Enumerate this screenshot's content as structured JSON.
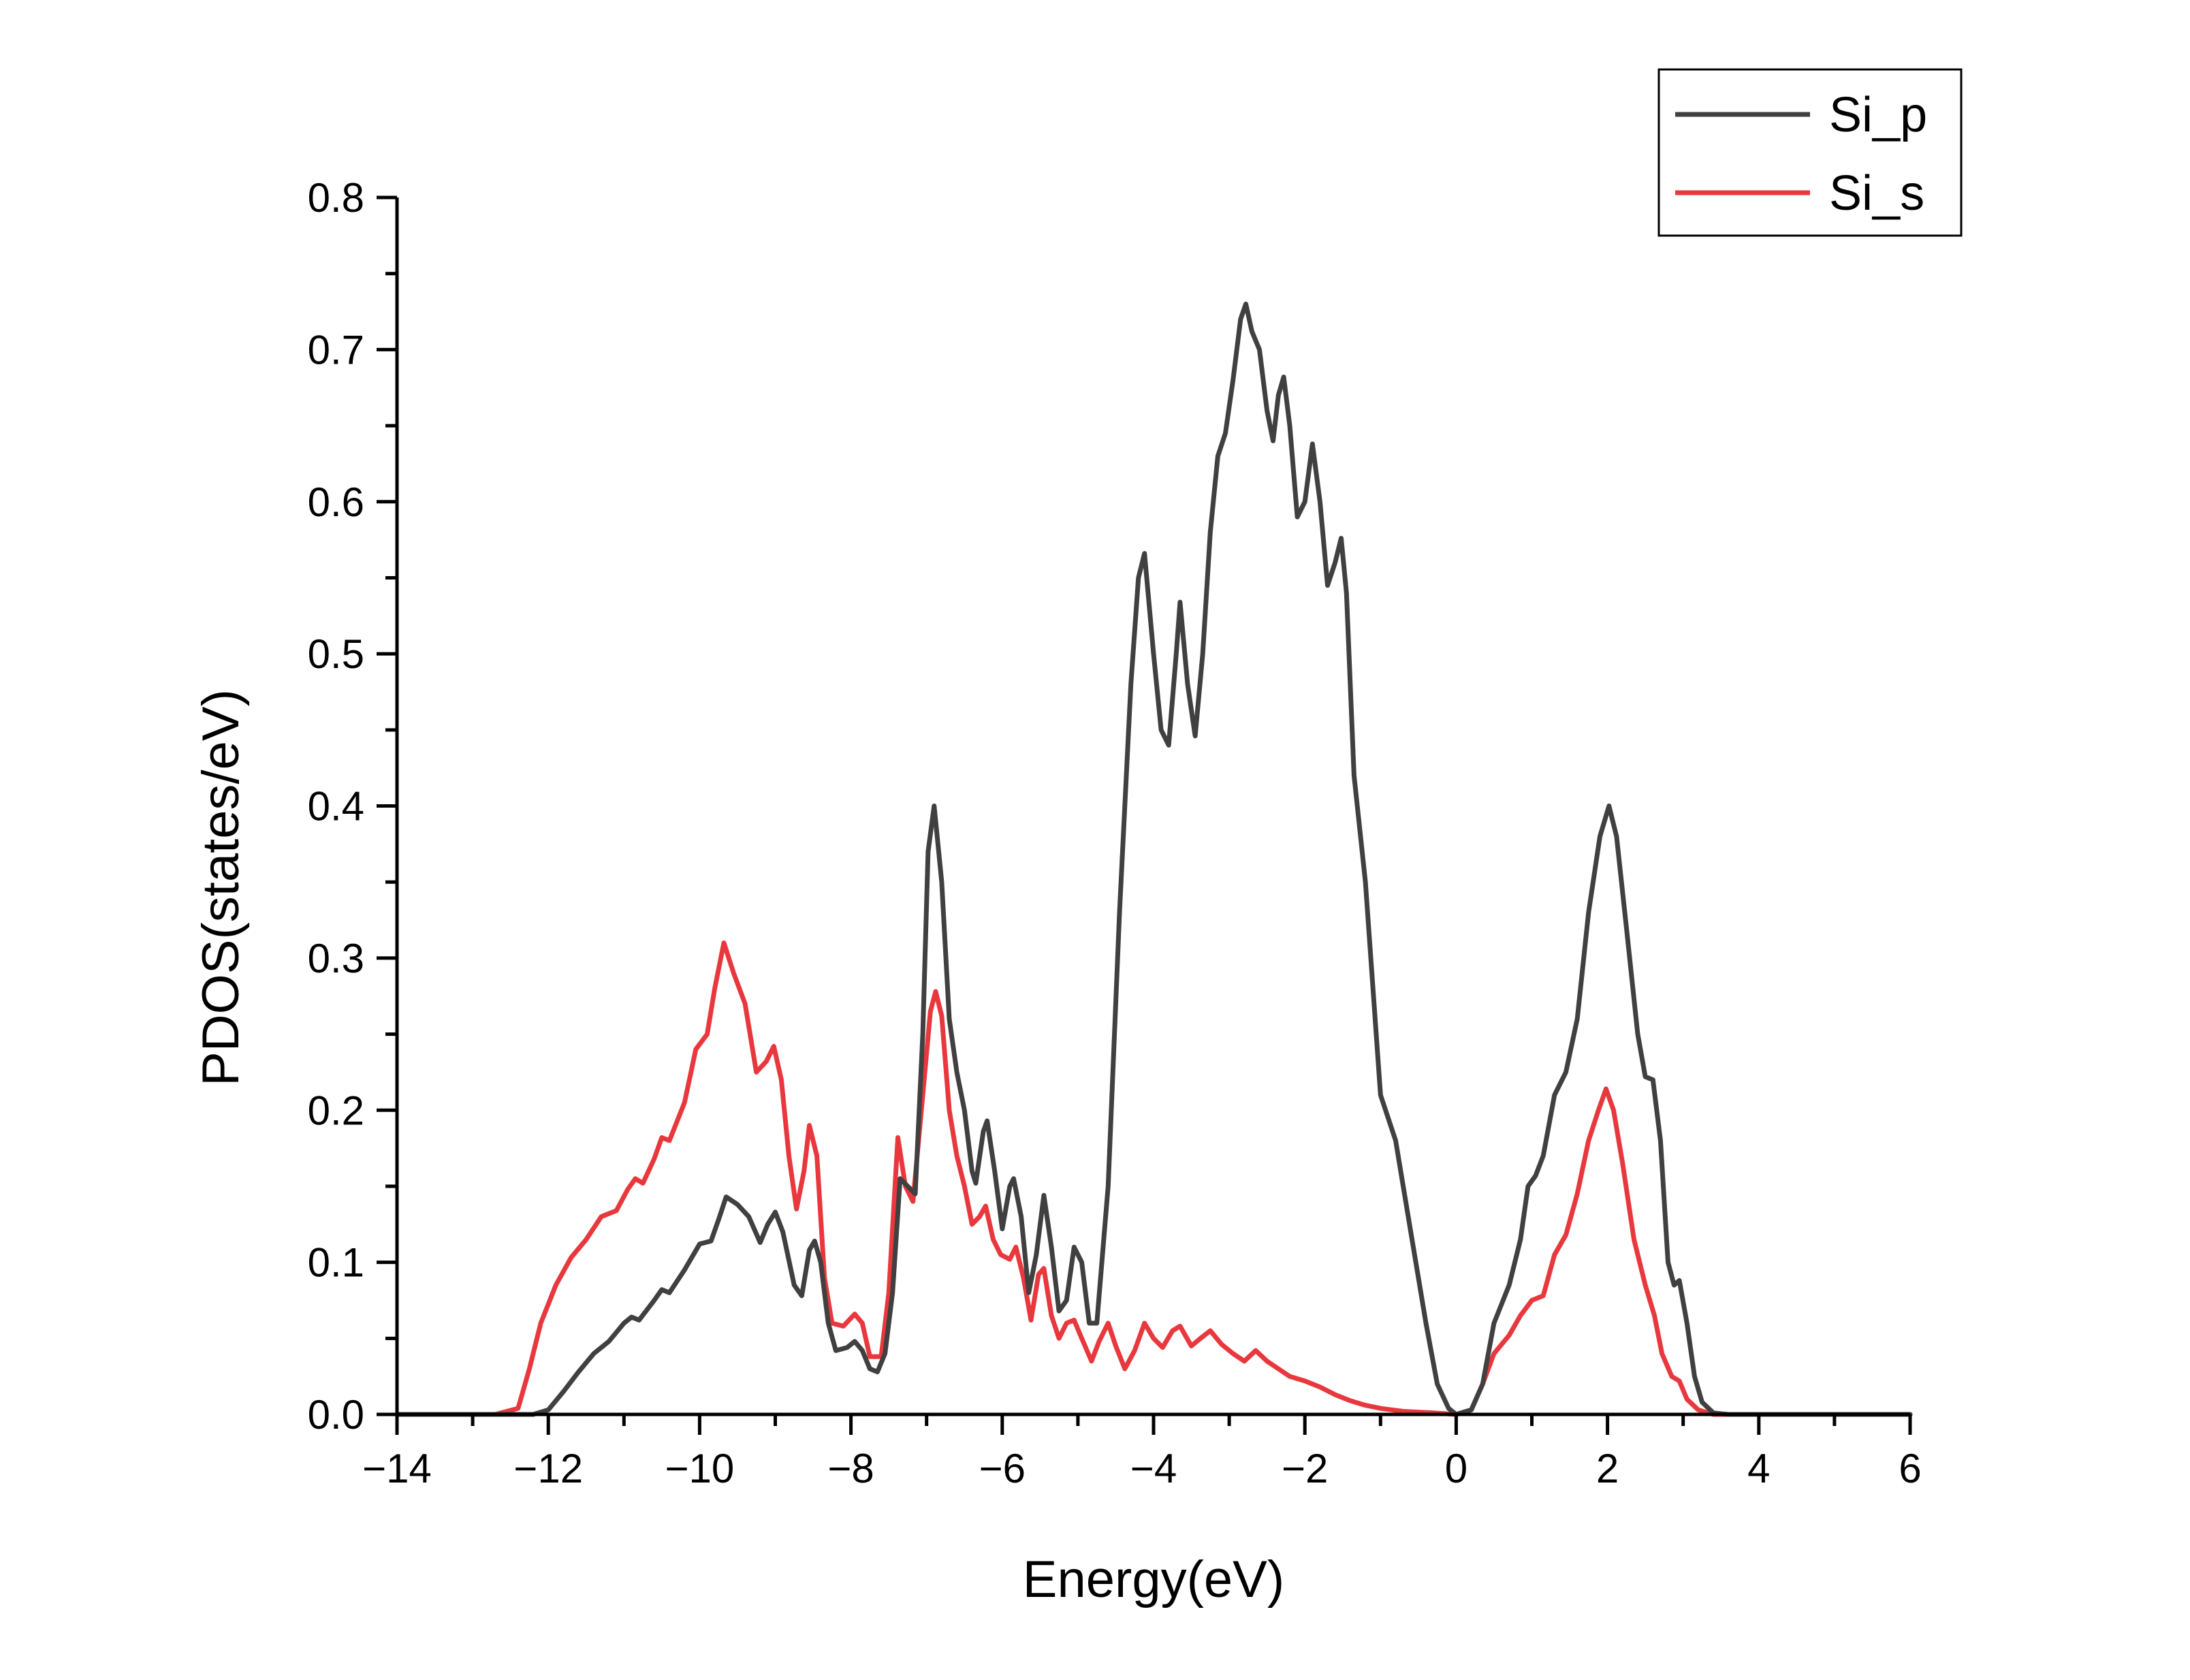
{
  "chart_data": {
    "type": "line",
    "title": "",
    "xlabel": "Energy(eV)",
    "ylabel": "PDOS(states/eV)",
    "xlim": [
      -14,
      6
    ],
    "ylim": [
      0,
      0.8
    ],
    "x_ticks": [
      -14,
      -12,
      -10,
      -8,
      -6,
      -4,
      -2,
      0,
      2,
      4,
      6
    ],
    "x_tick_labels": [
      "−14",
      "−12",
      "−10",
      "−8",
      "−6",
      "−4",
      "−2",
      "0",
      "2",
      "4",
      "6"
    ],
    "y_ticks": [
      0,
      0.1,
      0.2,
      0.3,
      0.4,
      0.5,
      0.6,
      0.7,
      0.8
    ],
    "y_tick_labels": [
      "0.0",
      "0.1",
      "0.2",
      "0.3",
      "0.4",
      "0.5",
      "0.6",
      "0.7",
      "0.8"
    ],
    "grid": false,
    "legend_position": "top-right",
    "series": [
      {
        "name": "Si_p",
        "color": "#404040",
        "points": [
          [
            -14,
            0
          ],
          [
            -12.5,
            0
          ],
          [
            -12.2,
            0.0
          ],
          [
            -12.0,
            0.003
          ],
          [
            -11.8,
            0.015
          ],
          [
            -11.6,
            0.028
          ],
          [
            -11.4,
            0.04
          ],
          [
            -11.2,
            0.048
          ],
          [
            -11.0,
            0.06
          ],
          [
            -10.9,
            0.064
          ],
          [
            -10.8,
            0.062
          ],
          [
            -10.6,
            0.075
          ],
          [
            -10.5,
            0.082
          ],
          [
            -10.4,
            0.08
          ],
          [
            -10.2,
            0.095
          ],
          [
            -10.0,
            0.112
          ],
          [
            -9.85,
            0.114
          ],
          [
            -9.75,
            0.128
          ],
          [
            -9.65,
            0.143
          ],
          [
            -9.5,
            0.138
          ],
          [
            -9.35,
            0.13
          ],
          [
            -9.2,
            0.113
          ],
          [
            -9.1,
            0.125
          ],
          [
            -9.0,
            0.133
          ],
          [
            -8.9,
            0.12
          ],
          [
            -8.75,
            0.085
          ],
          [
            -8.65,
            0.078
          ],
          [
            -8.55,
            0.108
          ],
          [
            -8.48,
            0.114
          ],
          [
            -8.4,
            0.1
          ],
          [
            -8.3,
            0.06
          ],
          [
            -8.2,
            0.042
          ],
          [
            -8.05,
            0.044
          ],
          [
            -7.95,
            0.048
          ],
          [
            -7.85,
            0.042
          ],
          [
            -7.75,
            0.03
          ],
          [
            -7.65,
            0.028
          ],
          [
            -7.55,
            0.04
          ],
          [
            -7.45,
            0.08
          ],
          [
            -7.35,
            0.155
          ],
          [
            -7.25,
            0.15
          ],
          [
            -7.15,
            0.145
          ],
          [
            -7.05,
            0.25
          ],
          [
            -6.98,
            0.37
          ],
          [
            -6.9,
            0.4
          ],
          [
            -6.8,
            0.35
          ],
          [
            -6.7,
            0.26
          ],
          [
            -6.6,
            0.225
          ],
          [
            -6.5,
            0.2
          ],
          [
            -6.4,
            0.16
          ],
          [
            -6.35,
            0.152
          ],
          [
            -6.25,
            0.186
          ],
          [
            -6.2,
            0.193
          ],
          [
            -6.1,
            0.16
          ],
          [
            -6.0,
            0.122
          ],
          [
            -5.9,
            0.15
          ],
          [
            -5.85,
            0.155
          ],
          [
            -5.75,
            0.13
          ],
          [
            -5.65,
            0.08
          ],
          [
            -5.55,
            0.105
          ],
          [
            -5.45,
            0.144
          ],
          [
            -5.35,
            0.11
          ],
          [
            -5.25,
            0.068
          ],
          [
            -5.15,
            0.075
          ],
          [
            -5.05,
            0.11
          ],
          [
            -4.95,
            0.1
          ],
          [
            -4.85,
            0.06
          ],
          [
            -4.75,
            0.06
          ],
          [
            -4.6,
            0.15
          ],
          [
            -4.45,
            0.33
          ],
          [
            -4.3,
            0.48
          ],
          [
            -4.2,
            0.55
          ],
          [
            -4.12,
            0.566
          ],
          [
            -4.0,
            0.5
          ],
          [
            -3.9,
            0.45
          ],
          [
            -3.8,
            0.44
          ],
          [
            -3.7,
            0.5
          ],
          [
            -3.65,
            0.534
          ],
          [
            -3.55,
            0.48
          ],
          [
            -3.45,
            0.446
          ],
          [
            -3.35,
            0.5
          ],
          [
            -3.25,
            0.58
          ],
          [
            -3.15,
            0.63
          ],
          [
            -3.05,
            0.645
          ],
          [
            -2.95,
            0.68
          ],
          [
            -2.85,
            0.72
          ],
          [
            -2.78,
            0.73
          ],
          [
            -2.7,
            0.712
          ],
          [
            -2.6,
            0.7
          ],
          [
            -2.5,
            0.66
          ],
          [
            -2.42,
            0.64
          ],
          [
            -2.35,
            0.67
          ],
          [
            -2.28,
            0.682
          ],
          [
            -2.2,
            0.65
          ],
          [
            -2.1,
            0.59
          ],
          [
            -2.0,
            0.6
          ],
          [
            -1.9,
            0.638
          ],
          [
            -1.8,
            0.6
          ],
          [
            -1.7,
            0.545
          ],
          [
            -1.6,
            0.56
          ],
          [
            -1.52,
            0.576
          ],
          [
            -1.45,
            0.54
          ],
          [
            -1.35,
            0.42
          ],
          [
            -1.2,
            0.35
          ],
          [
            -1.0,
            0.21
          ],
          [
            -0.8,
            0.18
          ],
          [
            -0.6,
            0.12
          ],
          [
            -0.4,
            0.06
          ],
          [
            -0.25,
            0.02
          ],
          [
            -0.1,
            0.004
          ],
          [
            0.0,
            0.0
          ],
          [
            0.2,
            0.003
          ],
          [
            0.35,
            0.02
          ],
          [
            0.5,
            0.06
          ],
          [
            0.7,
            0.085
          ],
          [
            0.85,
            0.115
          ],
          [
            0.95,
            0.15
          ],
          [
            1.05,
            0.157
          ],
          [
            1.15,
            0.17
          ],
          [
            1.3,
            0.21
          ],
          [
            1.45,
            0.225
          ],
          [
            1.6,
            0.26
          ],
          [
            1.75,
            0.33
          ],
          [
            1.9,
            0.38
          ],
          [
            2.02,
            0.4
          ],
          [
            2.12,
            0.38
          ],
          [
            2.25,
            0.32
          ],
          [
            2.4,
            0.25
          ],
          [
            2.5,
            0.222
          ],
          [
            2.6,
            0.22
          ],
          [
            2.7,
            0.18
          ],
          [
            2.8,
            0.1
          ],
          [
            2.88,
            0.085
          ],
          [
            2.95,
            0.088
          ],
          [
            3.05,
            0.06
          ],
          [
            3.15,
            0.025
          ],
          [
            3.25,
            0.008
          ],
          [
            3.4,
            0.001
          ],
          [
            3.6,
            0.0
          ],
          [
            6.0,
            0.0
          ]
        ]
      },
      {
        "name": "Si_s",
        "color": "#e8383d",
        "points": [
          [
            -14,
            0
          ],
          [
            -12.7,
            0
          ],
          [
            -12.4,
            0.004
          ],
          [
            -12.25,
            0.03
          ],
          [
            -12.1,
            0.06
          ],
          [
            -11.9,
            0.085
          ],
          [
            -11.7,
            0.103
          ],
          [
            -11.5,
            0.115
          ],
          [
            -11.3,
            0.13
          ],
          [
            -11.1,
            0.134
          ],
          [
            -10.95,
            0.148
          ],
          [
            -10.85,
            0.155
          ],
          [
            -10.75,
            0.152
          ],
          [
            -10.6,
            0.168
          ],
          [
            -10.5,
            0.182
          ],
          [
            -10.4,
            0.18
          ],
          [
            -10.2,
            0.205
          ],
          [
            -10.05,
            0.24
          ],
          [
            -9.9,
            0.25
          ],
          [
            -9.8,
            0.28
          ],
          [
            -9.68,
            0.31
          ],
          [
            -9.55,
            0.29
          ],
          [
            -9.4,
            0.27
          ],
          [
            -9.25,
            0.225
          ],
          [
            -9.12,
            0.232
          ],
          [
            -9.02,
            0.242
          ],
          [
            -8.92,
            0.22
          ],
          [
            -8.82,
            0.17
          ],
          [
            -8.72,
            0.135
          ],
          [
            -8.62,
            0.16
          ],
          [
            -8.55,
            0.19
          ],
          [
            -8.45,
            0.17
          ],
          [
            -8.35,
            0.09
          ],
          [
            -8.25,
            0.06
          ],
          [
            -8.1,
            0.058
          ],
          [
            -7.95,
            0.066
          ],
          [
            -7.85,
            0.06
          ],
          [
            -7.75,
            0.038
          ],
          [
            -7.6,
            0.038
          ],
          [
            -7.5,
            0.08
          ],
          [
            -7.38,
            0.182
          ],
          [
            -7.28,
            0.15
          ],
          [
            -7.18,
            0.14
          ],
          [
            -7.05,
            0.21
          ],
          [
            -6.95,
            0.265
          ],
          [
            -6.88,
            0.278
          ],
          [
            -6.8,
            0.262
          ],
          [
            -6.7,
            0.2
          ],
          [
            -6.6,
            0.17
          ],
          [
            -6.5,
            0.15
          ],
          [
            -6.4,
            0.125
          ],
          [
            -6.3,
            0.13
          ],
          [
            -6.22,
            0.137
          ],
          [
            -6.12,
            0.115
          ],
          [
            -6.02,
            0.105
          ],
          [
            -5.9,
            0.102
          ],
          [
            -5.82,
            0.11
          ],
          [
            -5.72,
            0.09
          ],
          [
            -5.62,
            0.062
          ],
          [
            -5.52,
            0.092
          ],
          [
            -5.45,
            0.096
          ],
          [
            -5.35,
            0.065
          ],
          [
            -5.25,
            0.05
          ],
          [
            -5.15,
            0.06
          ],
          [
            -5.05,
            0.062
          ],
          [
            -4.95,
            0.05
          ],
          [
            -4.82,
            0.035
          ],
          [
            -4.72,
            0.048
          ],
          [
            -4.6,
            0.06
          ],
          [
            -4.5,
            0.045
          ],
          [
            -4.38,
            0.03
          ],
          [
            -4.25,
            0.042
          ],
          [
            -4.12,
            0.06
          ],
          [
            -4.0,
            0.05
          ],
          [
            -3.88,
            0.044
          ],
          [
            -3.75,
            0.055
          ],
          [
            -3.65,
            0.058
          ],
          [
            -3.5,
            0.045
          ],
          [
            -3.38,
            0.05
          ],
          [
            -3.25,
            0.055
          ],
          [
            -3.1,
            0.046
          ],
          [
            -2.95,
            0.04
          ],
          [
            -2.8,
            0.035
          ],
          [
            -2.65,
            0.042
          ],
          [
            -2.5,
            0.035
          ],
          [
            -2.35,
            0.03
          ],
          [
            -2.2,
            0.025
          ],
          [
            -2.0,
            0.022
          ],
          [
            -1.8,
            0.018
          ],
          [
            -1.6,
            0.013
          ],
          [
            -1.4,
            0.009
          ],
          [
            -1.2,
            0.006
          ],
          [
            -1.0,
            0.004
          ],
          [
            -0.7,
            0.002
          ],
          [
            -0.3,
            0.001
          ],
          [
            0.0,
            0.0
          ],
          [
            0.2,
            0.003
          ],
          [
            0.35,
            0.02
          ],
          [
            0.5,
            0.04
          ],
          [
            0.7,
            0.052
          ],
          [
            0.85,
            0.065
          ],
          [
            1.0,
            0.075
          ],
          [
            1.15,
            0.078
          ],
          [
            1.3,
            0.105
          ],
          [
            1.45,
            0.118
          ],
          [
            1.6,
            0.145
          ],
          [
            1.75,
            0.18
          ],
          [
            1.88,
            0.2
          ],
          [
            1.98,
            0.214
          ],
          [
            2.08,
            0.2
          ],
          [
            2.2,
            0.165
          ],
          [
            2.35,
            0.115
          ],
          [
            2.5,
            0.085
          ],
          [
            2.62,
            0.065
          ],
          [
            2.72,
            0.04
          ],
          [
            2.85,
            0.025
          ],
          [
            2.95,
            0.022
          ],
          [
            3.05,
            0.01
          ],
          [
            3.2,
            0.003
          ],
          [
            3.4,
            0.0
          ],
          [
            6.0,
            0.0
          ]
        ]
      }
    ]
  }
}
